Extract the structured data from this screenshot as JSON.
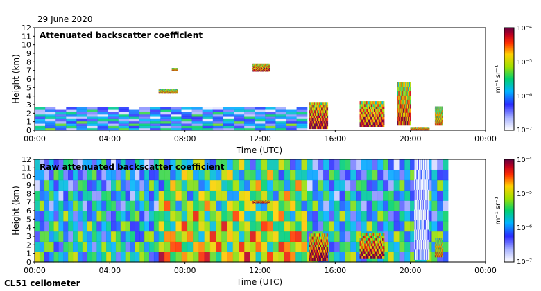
{
  "date_label": "29 June 2020",
  "instrument_label": "CL51 ceilometer",
  "chart_data": [
    {
      "type": "heatmap",
      "title": "Attenuated backscatter coefficient",
      "xlabel": "Time (UTC)",
      "ylabel": "Height (km)",
      "x_ticks": [
        "00:00",
        "04:00",
        "08:00",
        "12:00",
        "16:00",
        "20:00",
        "00:00"
      ],
      "xlim_hours": [
        0,
        24
      ],
      "y_ticks": [
        0,
        1,
        2,
        3,
        4,
        5,
        6,
        7,
        8,
        9,
        10,
        11,
        12
      ],
      "ylim_km": [
        0,
        12
      ],
      "colorbar": {
        "label": "m⁻¹ sr⁻¹",
        "scale": "log",
        "tick_labels": [
          "10⁻⁴",
          "10⁻⁵",
          "10⁻⁶",
          "10⁻⁷"
        ],
        "range": [
          1e-07,
          0.0001
        ]
      },
      "features": [
        {
          "name": "boundary-layer",
          "t0": 0,
          "t1": 14.5,
          "h0": 0,
          "h1": 2.7,
          "intensity": 0.35
        },
        {
          "name": "cloud-6.8h-4.6km",
          "t0": 6.6,
          "t1": 7.6,
          "h0": 4.4,
          "h1": 4.8,
          "intensity": 0.8
        },
        {
          "name": "cloud-7.5h-7.1km",
          "t0": 7.3,
          "t1": 7.6,
          "h0": 7.0,
          "h1": 7.3,
          "intensity": 0.85
        },
        {
          "name": "cloud-12h-7.1km",
          "t0": 11.6,
          "t1": 12.5,
          "h0": 6.9,
          "h1": 7.8,
          "intensity": 0.95
        },
        {
          "name": "cloud-15h-convective",
          "t0": 14.6,
          "t1": 15.6,
          "h0": 0.2,
          "h1": 3.3,
          "intensity": 1.0
        },
        {
          "name": "cloud-17.5h",
          "t0": 17.3,
          "t1": 18.6,
          "h0": 0.4,
          "h1": 3.4,
          "intensity": 0.95
        },
        {
          "name": "cloud-19.5h",
          "t0": 19.3,
          "t1": 20.0,
          "h0": 0.6,
          "h1": 5.6,
          "intensity": 0.9
        },
        {
          "name": "cloud-21.5h",
          "t0": 21.3,
          "t1": 21.7,
          "h0": 0.6,
          "h1": 2.8,
          "intensity": 0.8
        },
        {
          "name": "surface-rain-20h",
          "t0": 20.0,
          "t1": 21.0,
          "h0": 0,
          "h1": 0.3,
          "intensity": 1.0
        }
      ]
    },
    {
      "type": "heatmap",
      "title": "Raw attenuated backscatter coefficient",
      "xlabel": "Time (UTC)",
      "ylabel": "Height (km)",
      "x_ticks": [
        "00:00",
        "04:00",
        "08:00",
        "12:00",
        "16:00",
        "20:00",
        "00:00"
      ],
      "xlim_hours": [
        0,
        24
      ],
      "y_ticks": [
        0,
        1,
        2,
        3,
        4,
        5,
        6,
        7,
        8,
        9,
        10,
        11,
        12
      ],
      "ylim_km": [
        0,
        12
      ],
      "colorbar": {
        "label": "m⁻¹ sr⁻¹",
        "scale": "log",
        "tick_labels": [
          "10⁻⁴",
          "10⁻⁵",
          "10⁻⁶",
          "10⁻⁷"
        ],
        "range": [
          1e-07,
          0.0001
        ]
      },
      "features": [
        {
          "name": "background-noise-night",
          "t0": 0,
          "t1": 6.6,
          "h0": 0,
          "h1": 12,
          "intensity": 0.45
        },
        {
          "name": "background-noise-day",
          "t0": 6.6,
          "t1": 14.5,
          "h0": 0,
          "h1": 12,
          "intensity": 0.7
        },
        {
          "name": "background-noise-evening",
          "t0": 14.5,
          "t1": 22.0,
          "h0": 0,
          "h1": 12,
          "intensity": 0.45
        },
        {
          "name": "cloud-12h-7.1km",
          "t0": 11.6,
          "t1": 12.5,
          "h0": 6.9,
          "h1": 7.3,
          "intensity": 0.95
        },
        {
          "name": "cloud-15h-convective",
          "t0": 14.6,
          "t1": 15.6,
          "h0": 0.2,
          "h1": 3.3,
          "intensity": 1.0
        },
        {
          "name": "cloud-17.5h",
          "t0": 17.3,
          "t1": 18.6,
          "h0": 0.4,
          "h1": 3.4,
          "intensity": 0.95
        },
        {
          "name": "cloud-21.5h",
          "t0": 21.3,
          "t1": 21.7,
          "h0": 0.6,
          "h1": 2.8,
          "intensity": 0.8
        },
        {
          "name": "attenuated-after-rain",
          "t0": 20.2,
          "t1": 21.0,
          "h0": 0.3,
          "h1": 12,
          "intensity": 0.05
        }
      ]
    }
  ]
}
